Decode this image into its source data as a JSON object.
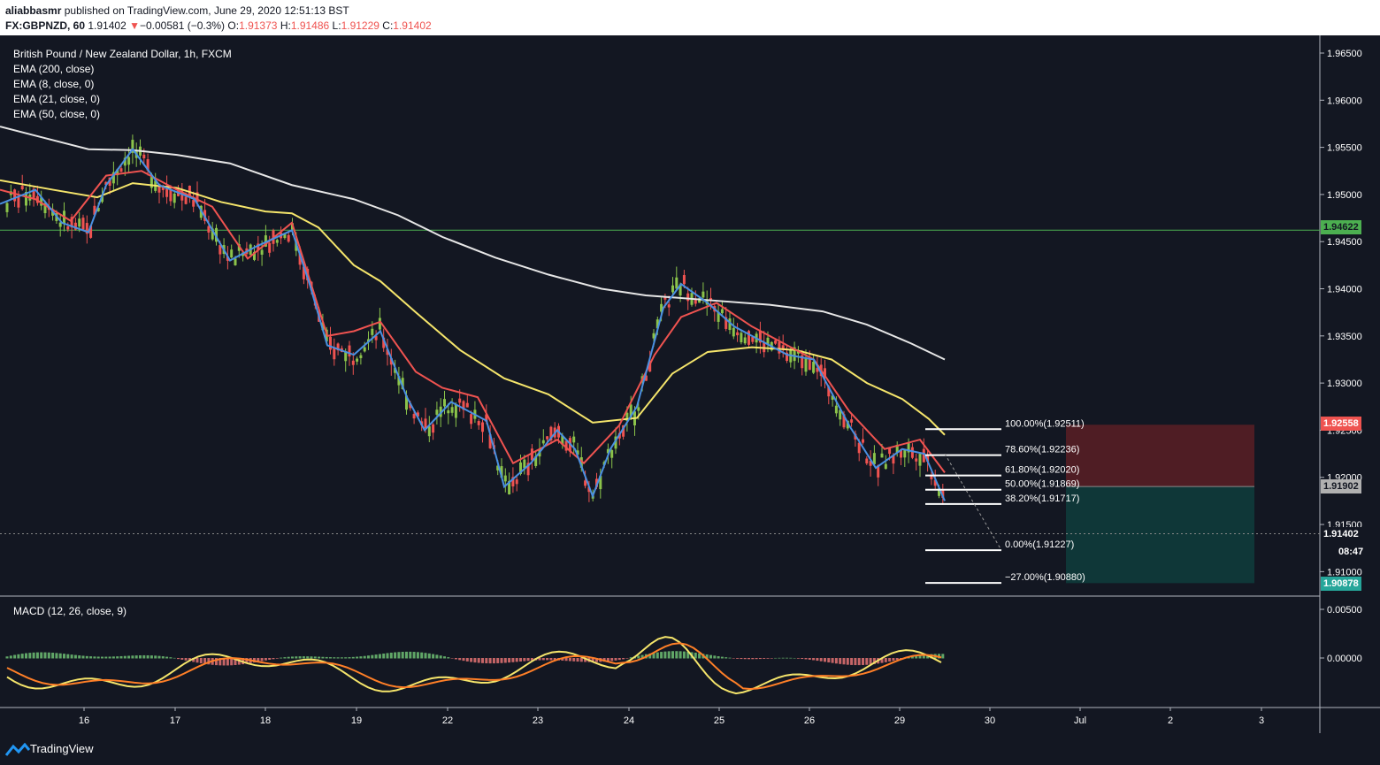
{
  "header": {
    "publisher": "aliabbasmr",
    "published_text": "published on TradingView.com, June 29, 2020 12:51:13 BST",
    "symbol": "FX:GBPNZD, 60",
    "last": "1.91402",
    "arrow": "▼",
    "change": "−0.00581 (−0.3%)",
    "o_label": "O:",
    "o_val": "1.91373",
    "h_label": "H:",
    "h_val": "1.91486",
    "l_label": "L:",
    "l_val": "1.91229",
    "c_label": "C:",
    "c_val": "1.91402"
  },
  "legend": {
    "title": "British Pound / New Zealand Dollar, 1h, FXCM",
    "ema200": "EMA (200, close)",
    "ema8": "EMA (8, close, 0)",
    "ema21": "EMA (21, close, 0)",
    "ema50": "EMA (50, close, 0)"
  },
  "macd_label": "MACD (12, 26, close, 9)",
  "brand": "TradingView",
  "price_tags": {
    "green_line": "1.94622",
    "stop": "1.92558",
    "entry": "1.91902",
    "last": "1.91402",
    "countdown": "08:47",
    "target": "1.90878"
  },
  "colors": {
    "background": "#131722",
    "ema200": "#e6e6e6",
    "ema8": "#4a90e2",
    "ema21": "#ef5350",
    "ema50": "#f5e56b",
    "up": "#8bc34a",
    "down": "#ef5350",
    "level": "#4caf50",
    "stop_zone": "#5a1f24",
    "target_zone": "#0f3b3b"
  },
  "chart_data": {
    "type": "candlestick",
    "symbol": "GBPNZD",
    "timeframe": "1h",
    "ylim": [
      1.9075,
      1.9665
    ],
    "y_ticks": [
      "1.96500",
      "1.96000",
      "1.95500",
      "1.95000",
      "1.94500",
      "1.94000",
      "1.93500",
      "1.93000",
      "1.92500",
      "1.92000",
      "1.91500",
      "1.91000"
    ],
    "x_ticks": [
      "16",
      "17",
      "18",
      "19",
      "22",
      "23",
      "24",
      "25",
      "26",
      "29",
      "30",
      "Jul",
      "2",
      "3"
    ],
    "horizontal_level": 1.94622,
    "fibonacci": [
      {
        "label": "100.00%(1.92511)",
        "value": 1.92511
      },
      {
        "label": "78.60%(1.92236)",
        "value": 1.92236
      },
      {
        "label": "61.80%(1.92020)",
        "value": 1.9202
      },
      {
        "label": "50.00%(1.91869)",
        "value": 1.91869
      },
      {
        "label": "38.20%(1.91717)",
        "value": 1.91717
      },
      {
        "label": "0.00%(1.91227)",
        "value": 1.91227
      },
      {
        "label": "−27.00%(1.90880)",
        "value": 1.9088
      }
    ],
    "position": {
      "stop": 1.92558,
      "entry": 1.91902,
      "target": 1.90878
    },
    "ema200": [
      [
        0,
        1.9572
      ],
      [
        50,
        1.956
      ],
      [
        100,
        1.9548
      ],
      [
        150,
        1.9547
      ],
      [
        200,
        1.9542
      ],
      [
        260,
        1.9533
      ],
      [
        330,
        1.951
      ],
      [
        400,
        1.9495
      ],
      [
        450,
        1.9478
      ],
      [
        500,
        1.9455
      ],
      [
        560,
        1.9433
      ],
      [
        620,
        1.9415
      ],
      [
        680,
        1.94
      ],
      [
        730,
        1.9393
      ],
      [
        800,
        1.9388
      ],
      [
        870,
        1.9383
      ],
      [
        930,
        1.9376
      ],
      [
        980,
        1.9362
      ],
      [
        1030,
        1.9342
      ],
      [
        1068,
        1.9325
      ]
    ],
    "ema50": [
      [
        0,
        1.9515
      ],
      [
        60,
        1.9505
      ],
      [
        110,
        1.9497
      ],
      [
        150,
        1.9512
      ],
      [
        200,
        1.9507
      ],
      [
        250,
        1.9492
      ],
      [
        300,
        1.9482
      ],
      [
        330,
        1.948
      ],
      [
        360,
        1.9465
      ],
      [
        400,
        1.9425
      ],
      [
        430,
        1.9408
      ],
      [
        470,
        1.9375
      ],
      [
        520,
        1.9335
      ],
      [
        570,
        1.9305
      ],
      [
        620,
        1.9288
      ],
      [
        670,
        1.9258
      ],
      [
        720,
        1.9263
      ],
      [
        760,
        1.931
      ],
      [
        800,
        1.9333
      ],
      [
        850,
        1.9338
      ],
      [
        900,
        1.9335
      ],
      [
        940,
        1.9325
      ],
      [
        980,
        1.93
      ],
      [
        1020,
        1.9283
      ],
      [
        1050,
        1.9262
      ],
      [
        1068,
        1.9245
      ]
    ],
    "ema21": [
      [
        0,
        1.9505
      ],
      [
        40,
        1.9495
      ],
      [
        80,
        1.9472
      ],
      [
        120,
        1.952
      ],
      [
        160,
        1.9525
      ],
      [
        200,
        1.9505
      ],
      [
        240,
        1.9487
      ],
      [
        280,
        1.9432
      ],
      [
        330,
        1.947
      ],
      [
        370,
        1.935
      ],
      [
        400,
        1.9355
      ],
      [
        430,
        1.9365
      ],
      [
        470,
        1.9312
      ],
      [
        500,
        1.9295
      ],
      [
        540,
        1.9285
      ],
      [
        580,
        1.9215
      ],
      [
        630,
        1.924
      ],
      [
        660,
        1.9215
      ],
      [
        700,
        1.9255
      ],
      [
        740,
        1.933
      ],
      [
        770,
        1.937
      ],
      [
        810,
        1.9385
      ],
      [
        850,
        1.936
      ],
      [
        880,
        1.9345
      ],
      [
        920,
        1.9325
      ],
      [
        960,
        1.927
      ],
      [
        1000,
        1.923
      ],
      [
        1040,
        1.924
      ],
      [
        1068,
        1.9205
      ]
    ],
    "ema8": [
      [
        0,
        1.949
      ],
      [
        40,
        1.9505
      ],
      [
        70,
        1.947
      ],
      [
        100,
        1.946
      ],
      [
        120,
        1.951
      ],
      [
        150,
        1.9548
      ],
      [
        180,
        1.951
      ],
      [
        220,
        1.9495
      ],
      [
        260,
        1.943
      ],
      [
        290,
        1.9445
      ],
      [
        330,
        1.9462
      ],
      [
        350,
        1.9405
      ],
      [
        370,
        1.934
      ],
      [
        400,
        1.933
      ],
      [
        430,
        1.9355
      ],
      [
        460,
        1.9285
      ],
      [
        480,
        1.925
      ],
      [
        510,
        1.928
      ],
      [
        550,
        1.926
      ],
      [
        570,
        1.919
      ],
      [
        600,
        1.9215
      ],
      [
        630,
        1.925
      ],
      [
        650,
        1.923
      ],
      [
        670,
        1.918
      ],
      [
        690,
        1.923
      ],
      [
        720,
        1.9275
      ],
      [
        750,
        1.938
      ],
      [
        770,
        1.9405
      ],
      [
        800,
        1.9385
      ],
      [
        830,
        1.936
      ],
      [
        860,
        1.9345
      ],
      [
        890,
        1.933
      ],
      [
        920,
        1.9325
      ],
      [
        960,
        1.9255
      ],
      [
        990,
        1.921
      ],
      [
        1020,
        1.923
      ],
      [
        1045,
        1.9225
      ],
      [
        1068,
        1.9175
      ]
    ]
  }
}
